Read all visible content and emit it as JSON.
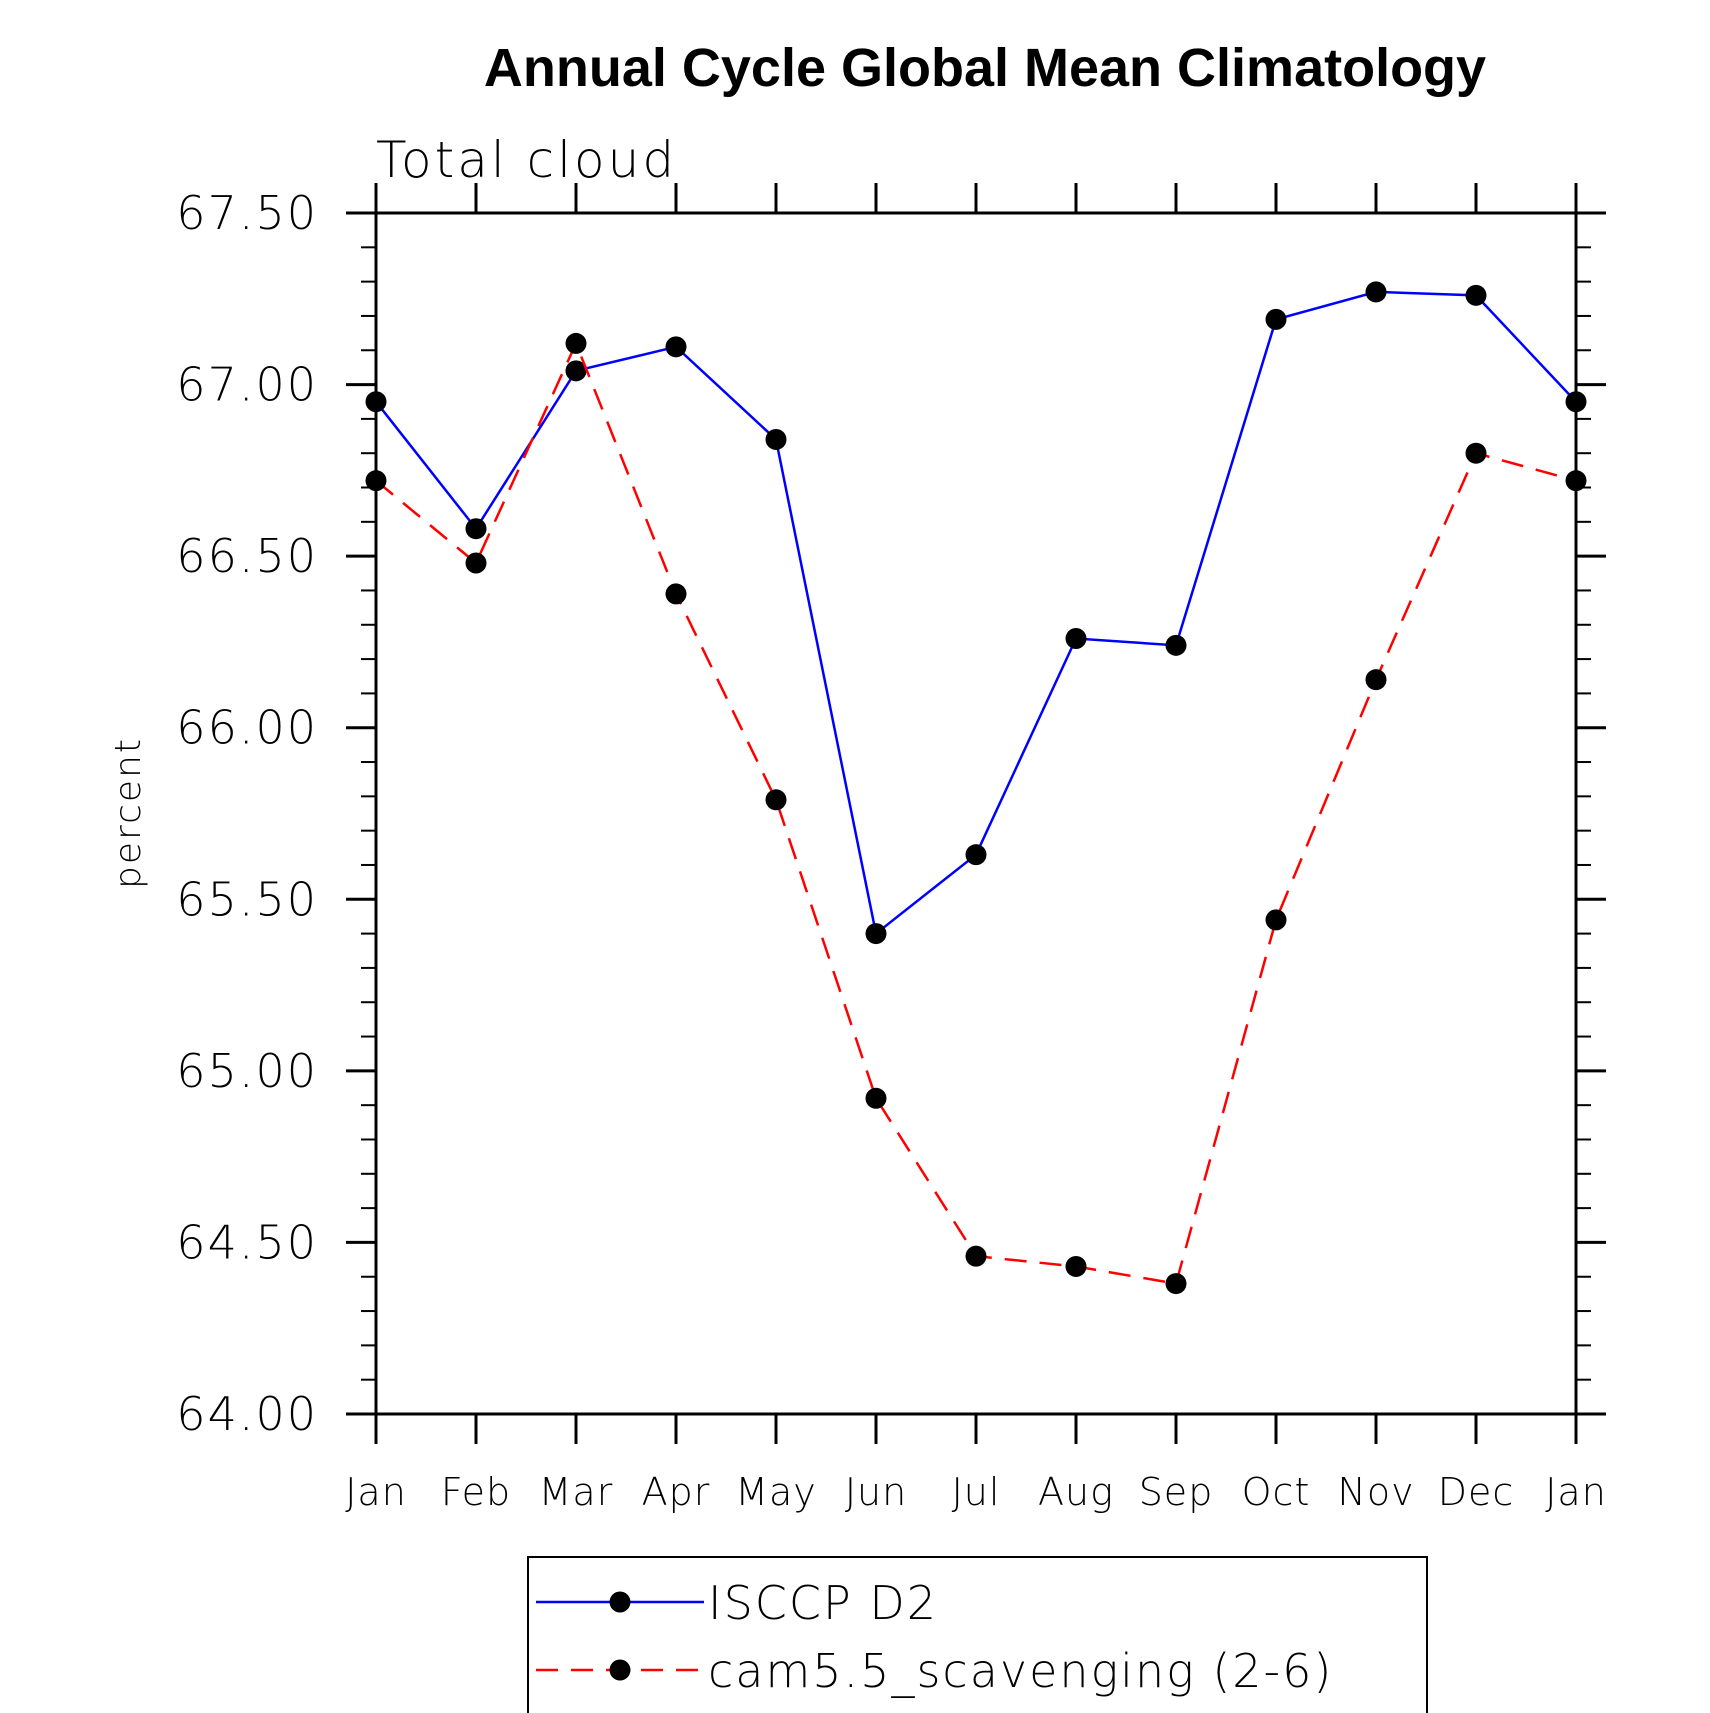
{
  "chart_data": {
    "type": "line",
    "title": "Annual Cycle Global Mean Climatology",
    "subtitle": "Total cloud",
    "xlabel": "",
    "ylabel": "percent",
    "categories": [
      "Jan",
      "Feb",
      "Mar",
      "Apr",
      "May",
      "Jun",
      "Jul",
      "Aug",
      "Sep",
      "Oct",
      "Nov",
      "Dec",
      "Jan"
    ],
    "ylim": [
      64.0,
      67.5
    ],
    "yticks": [
      "64.00",
      "64.50",
      "65.00",
      "65.50",
      "66.00",
      "66.50",
      "67.00",
      "67.50"
    ],
    "grid": false,
    "legend_position": "bottom-center",
    "series": [
      {
        "name": "ISCCP D2",
        "color": "#0000ff",
        "line_style": "solid",
        "marker": "filled-circle",
        "values": [
          66.95,
          66.58,
          67.04,
          67.11,
          66.84,
          65.4,
          65.63,
          66.26,
          66.24,
          67.19,
          67.27,
          67.26,
          66.95
        ]
      },
      {
        "name": "cam5.5_scavenging (2-6)",
        "color": "#ff0000",
        "line_style": "dashed",
        "marker": "filled-circle",
        "values": [
          66.72,
          66.48,
          67.12,
          66.39,
          65.79,
          64.92,
          64.46,
          64.43,
          64.38,
          65.44,
          66.14,
          66.8,
          66.72
        ]
      }
    ]
  }
}
